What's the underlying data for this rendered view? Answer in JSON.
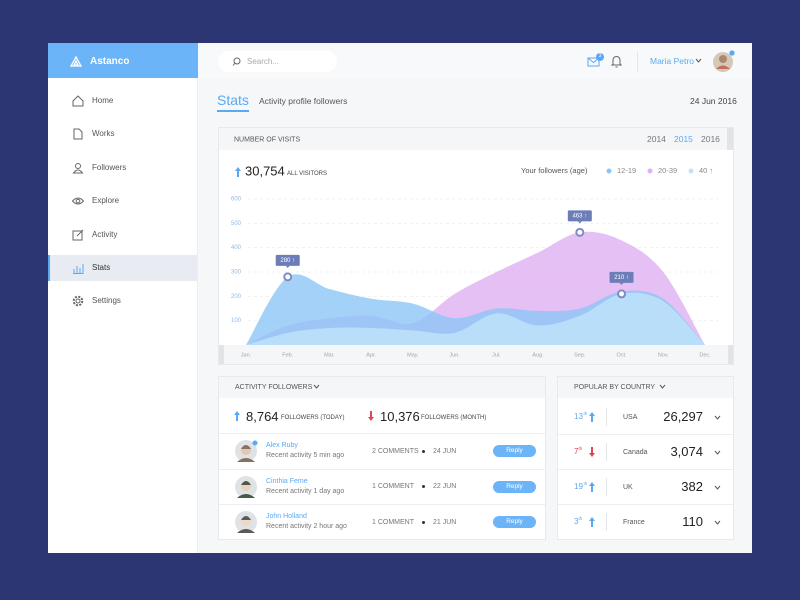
{
  "brand": "Astanco",
  "nav": [
    {
      "label": "Home"
    },
    {
      "label": "Works"
    },
    {
      "label": "Followers"
    },
    {
      "label": "Explore"
    },
    {
      "label": "Activity"
    },
    {
      "label": "Stats",
      "active": true
    },
    {
      "label": "Settings"
    }
  ],
  "topbar": {
    "search_placeholder": "Search...",
    "mail_count": "3",
    "user": "Maria Petro"
  },
  "page_header": {
    "title": "Stats",
    "subtitle": "Activity profile followers",
    "date": "24 Jun 2016"
  },
  "chart_data": {
    "type": "area",
    "title": "NUMBER OF VISITS",
    "years": [
      {
        "label": "2014"
      },
      {
        "label": "2015",
        "active": true
      },
      {
        "label": "2016"
      }
    ],
    "total": "30,754",
    "total_label": "ALL VISITORS",
    "legend_title": "Your followers (age)",
    "categories": [
      "Jan.",
      "Feb.",
      "Mar.",
      "Apr.",
      "May.",
      "Jun.",
      "Jul.",
      "Aug.",
      "Sep.",
      "Oct.",
      "Nov.",
      "Dec."
    ],
    "series": [
      {
        "name": "20-39",
        "color": "#dfb0f2",
        "values": [
          0,
          80,
          110,
          120,
          90,
          210,
          300,
          380,
          463,
          430,
          300,
          0
        ],
        "value_labels": [
          null,
          null,
          null,
          null,
          null,
          null,
          null,
          null,
          "463 ↑",
          null,
          null,
          null
        ]
      },
      {
        "name": "12-19",
        "color": "#8cc6f6",
        "values": [
          0,
          280,
          230,
          190,
          170,
          110,
          150,
          140,
          150,
          220,
          190,
          0
        ],
        "value_labels": [
          null,
          "280 ↑",
          null,
          null,
          null,
          null,
          null,
          null,
          null,
          null,
          null,
          null
        ]
      },
      {
        "name": "40 ↑",
        "color": "#bfe3fb",
        "values": [
          0,
          50,
          70,
          70,
          60,
          50,
          130,
          80,
          120,
          210,
          180,
          0
        ],
        "value_labels": [
          null,
          null,
          null,
          null,
          null,
          null,
          null,
          null,
          null,
          "210 ↑",
          null,
          null
        ]
      }
    ],
    "ylim": [
      0,
      600
    ],
    "yticks": [
      100,
      200,
      300,
      400,
      500,
      600
    ],
    "grid": true
  },
  "activity": {
    "title": "ACTIVITY FOLLOWERS",
    "today": "8,764",
    "today_label": "FOLLOWERS (TODAY)",
    "month": "10,376",
    "month_label": "FOLLOWERS (MONTH)",
    "rows": [
      {
        "name": "Alex Ruby",
        "activity": "Recent activity 5 min ago",
        "comments": "2 COMMENTS",
        "date": "24 JUN",
        "action": "Reply"
      },
      {
        "name": "Cinthia Feme",
        "activity": "Recent activity 1 day ago",
        "comments": "1 COMMENT",
        "date": "22 JUN",
        "action": "Reply"
      },
      {
        "name": "John Holland",
        "activity": "Recent activity 2 hour ago",
        "comments": "1 COMMENT",
        "date": "21 JUN",
        "action": "Reply"
      }
    ]
  },
  "countries": {
    "title": "POPULAR BY COUNTRY",
    "rows": [
      {
        "rank": "13",
        "rank_suffix": "th",
        "trend": "up",
        "country": "USA",
        "value": "26,297"
      },
      {
        "rank": "7",
        "rank_suffix": "th",
        "trend": "down",
        "country": "Canada",
        "value": "3,074"
      },
      {
        "rank": "19",
        "rank_suffix": "th",
        "trend": "up",
        "country": "UK",
        "value": "382"
      },
      {
        "rank": "3",
        "rank_suffix": "th",
        "trend": "up",
        "country": "France",
        "value": "110"
      }
    ]
  }
}
